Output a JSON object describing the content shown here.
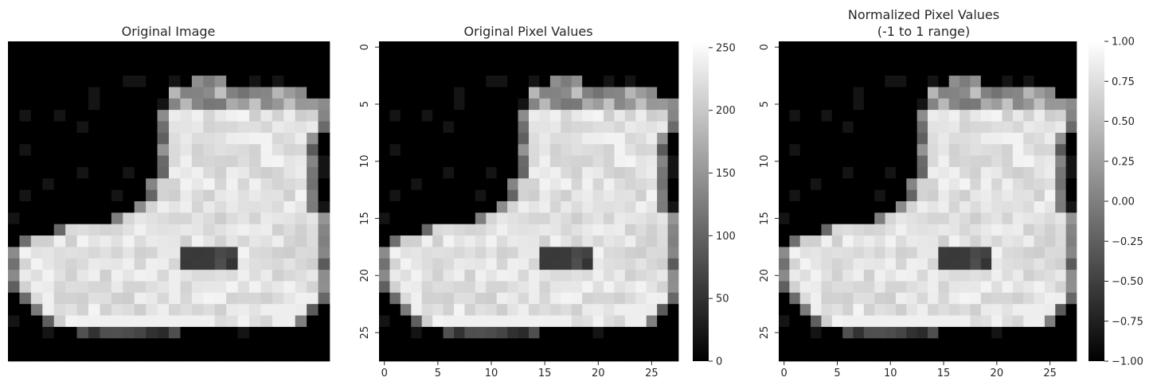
{
  "colors": {
    "background": "#ffffff",
    "text": "#262626",
    "cmap_low": "#000000",
    "cmap_high": "#ffffff"
  },
  "chart_data": [
    {
      "type": "heatmap",
      "title": "Original Image",
      "image": "fashion-mnist ankle boot 28x28 grayscale",
      "axes": "off",
      "colorbar": false
    },
    {
      "type": "heatmap",
      "title": "Original Pixel Values",
      "x_ticks": [
        "0",
        "5",
        "10",
        "15",
        "20",
        "25"
      ],
      "y_ticks": [
        "0",
        "5",
        "10",
        "15",
        "20",
        "25"
      ],
      "colorbar": {
        "range": [
          0,
          255
        ],
        "ticks": [
          "0",
          "50",
          "100",
          "150",
          "200",
          "250"
        ],
        "cmap": "gray"
      }
    },
    {
      "type": "heatmap",
      "title_lines": [
        "Normalized Pixel Values",
        "(-1 to 1 range)"
      ],
      "x_ticks": [
        "0",
        "5",
        "10",
        "15",
        "20",
        "25"
      ],
      "y_ticks": [
        "0",
        "5",
        "10",
        "15",
        "20",
        "25"
      ],
      "colorbar": {
        "range": [
          -1,
          1
        ],
        "ticks": [
          "1.00",
          "0.75",
          "0.50",
          "0.25",
          "0.00",
          "−0.25",
          "−0.50",
          "−0.75",
          "−1.00"
        ],
        "cmap": "gray"
      }
    }
  ]
}
